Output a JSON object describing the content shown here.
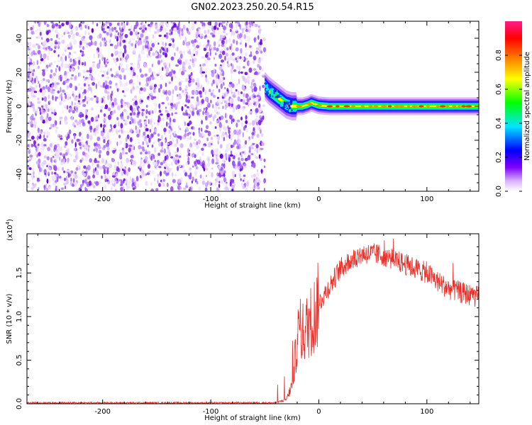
{
  "figure_title": "GN02.2023.250.20.54.R15",
  "chart_data": [
    {
      "type": "heatmap",
      "name": "spectrogram",
      "xlabel": "Height of straight line (km)",
      "ylabel": "Frequency (Hz)",
      "xlim": [
        -270,
        148
      ],
      "ylim": [
        -50,
        50
      ],
      "xticks": [
        -200,
        -100,
        0,
        100
      ],
      "yticks": [
        -40,
        -20,
        0,
        20,
        40
      ],
      "noise_region_x": [
        -270,
        -50
      ],
      "signal_track": [
        {
          "x": -50,
          "y": 12
        },
        {
          "x": -46,
          "y": 9
        },
        {
          "x": -42,
          "y": 7
        },
        {
          "x": -38,
          "y": 5
        },
        {
          "x": -34,
          "y": 3
        },
        {
          "x": -30,
          "y": 1
        },
        {
          "x": -25,
          "y": 0
        },
        {
          "x": -15,
          "y": 0
        },
        {
          "x": -10,
          "y": 1
        },
        {
          "x": -7,
          "y": 2
        },
        {
          "x": 0,
          "y": 0.5
        },
        {
          "x": 10,
          "y": 0
        },
        {
          "x": 148,
          "y": 0
        }
      ],
      "colorbar": {
        "label": "Normalized spectral amplitude",
        "ticks": [
          "0.0",
          "0.2",
          "0.4",
          "0.6",
          "0.8"
        ],
        "range": [
          0,
          1
        ],
        "colors": [
          "#ffffff",
          "#d9b3ff",
          "#7f00ff",
          "#0000ff",
          "#00e5ff",
          "#00ff00",
          "#ffff00",
          "#ff7f00",
          "#ff0000",
          "#ff1a8c"
        ]
      }
    },
    {
      "type": "line",
      "name": "snr",
      "xlabel": "Height of straight line (km)",
      "ylabel": "SNR (10 * v/v)",
      "yscale_label": "(x10",
      "yscale_exp": "4",
      "yscale_close": ")",
      "xlim": [
        -270,
        148
      ],
      "ylim": [
        0,
        1.95
      ],
      "xticks": [
        -200,
        -100,
        0,
        100
      ],
      "yticks": [
        "0.0",
        "0.5",
        "1.0",
        "1.5"
      ],
      "color": "#e8302a",
      "series": [
        {
          "x": [
            -270,
            -200,
            -100,
            -40,
            -30,
            -25,
            -22,
            -20,
            -18,
            -15,
            -10,
            -5,
            0,
            10,
            20,
            30,
            40,
            50,
            60,
            70,
            80,
            90,
            100,
            110,
            120,
            130,
            140,
            148
          ],
          "y": [
            0.01,
            0.01,
            0.01,
            0.01,
            0.05,
            0.2,
            0.5,
            0.75,
            0.85,
            0.8,
            0.9,
            1.0,
            1.15,
            1.35,
            1.55,
            1.65,
            1.72,
            1.72,
            1.7,
            1.65,
            1.6,
            1.55,
            1.5,
            1.4,
            1.32,
            1.28,
            1.25,
            1.22
          ]
        }
      ]
    }
  ]
}
